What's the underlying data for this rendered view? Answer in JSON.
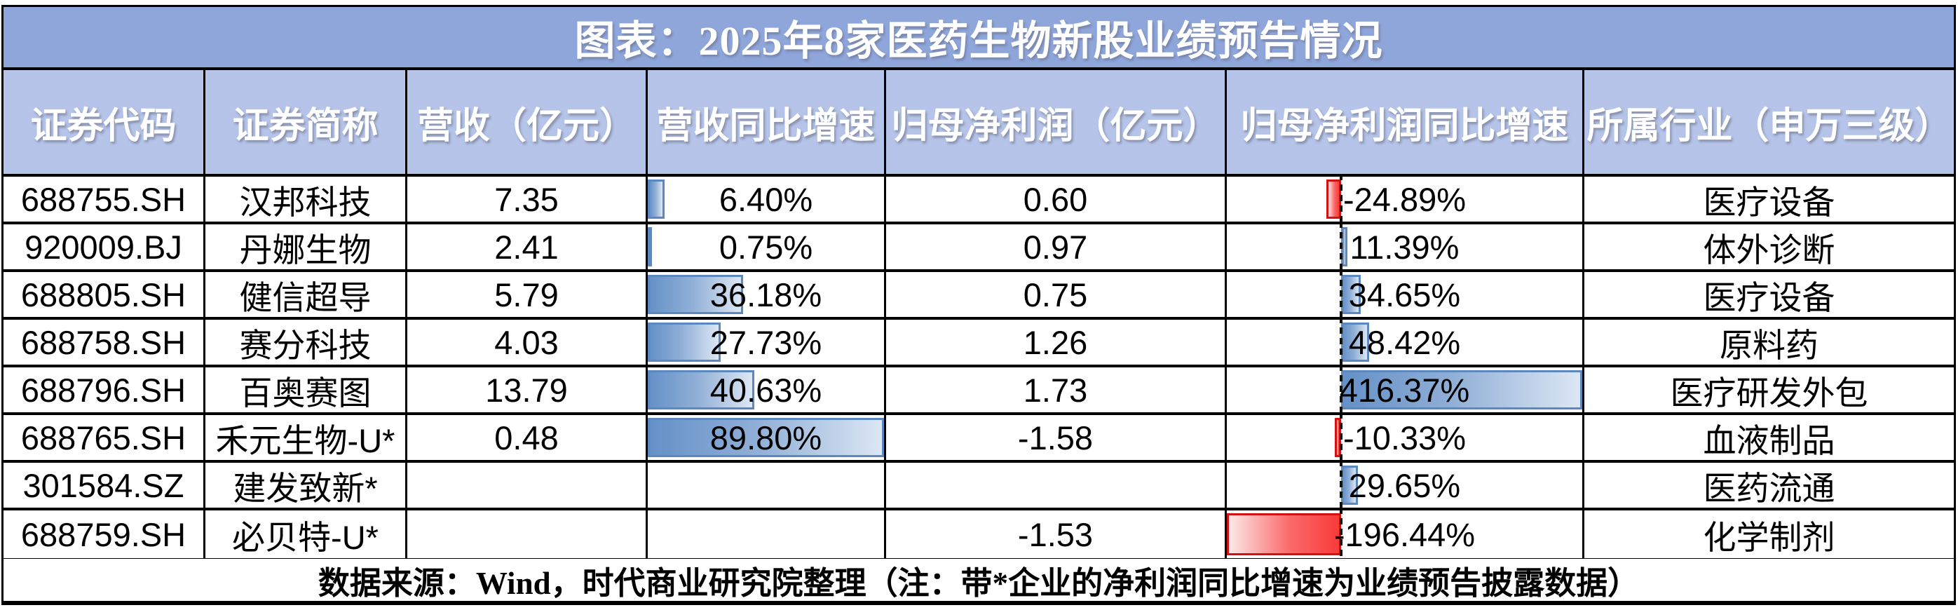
{
  "title": "图表：2025年8家医药生物新股业绩预告情况",
  "source_note": "数据来源：Wind，时代商业研究院整理（注：带*企业的净利润同比增速为业绩预告披露数据）",
  "colors": {
    "title_bg": "#8FA6DB",
    "header_bg": "#B5C4E8",
    "header_text": "#FFFFFF",
    "positive_bar_fill": "#6591C8",
    "positive_bar_fill_light": "#DCE7F4",
    "positive_bar_border": "#5B88BE",
    "negative_bar_fill": "#F93B3B",
    "negative_bar_fill_light": "#FCE9E9",
    "negative_bar_border": "#D41111",
    "grid_line": "#000000"
  },
  "chart_data": {
    "type": "table",
    "title": "图表：2025年8家医药生物新股业绩预告情况",
    "columns": [
      "证券代码",
      "证券简称",
      "营收（亿元）",
      "营收同比增速",
      "归母净利润（亿元）",
      "归母净利润同比增速",
      "所属行业（申万三级）"
    ],
    "rows": [
      {
        "code": "688755.SH",
        "name": "汉邦科技",
        "revenue": "7.35",
        "rev_growth": "6.40%",
        "rev_growth_value": 6.4,
        "profit": "0.60",
        "profit_growth": "-24.89%",
        "profit_growth_value": -24.89,
        "industry": "医疗设备"
      },
      {
        "code": "920009.BJ",
        "name": "丹娜生物",
        "revenue": "2.41",
        "rev_growth": "0.75%",
        "rev_growth_value": 0.75,
        "profit": "0.97",
        "profit_growth": "11.39%",
        "profit_growth_value": 11.39,
        "industry": "体外诊断"
      },
      {
        "code": "688805.SH",
        "name": "健信超导",
        "revenue": "5.79",
        "rev_growth": "36.18%",
        "rev_growth_value": 36.18,
        "profit": "0.75",
        "profit_growth": "34.65%",
        "profit_growth_value": 34.65,
        "industry": "医疗设备"
      },
      {
        "code": "688758.SH",
        "name": "赛分科技",
        "revenue": "4.03",
        "rev_growth": "27.73%",
        "rev_growth_value": 27.73,
        "profit": "1.26",
        "profit_growth": "48.42%",
        "profit_growth_value": 48.42,
        "industry": "原料药"
      },
      {
        "code": "688796.SH",
        "name": "百奥赛图",
        "revenue": "13.79",
        "rev_growth": "40.63%",
        "rev_growth_value": 40.63,
        "profit": "1.73",
        "profit_growth": "416.37%",
        "profit_growth_value": 416.37,
        "industry": "医疗研发外包"
      },
      {
        "code": "688765.SH",
        "name": "禾元生物-U*",
        "revenue": "0.48",
        "rev_growth": "89.80%",
        "rev_growth_value": 89.8,
        "profit": "-1.58",
        "profit_growth": "-10.33%",
        "profit_growth_value": -10.33,
        "industry": "血液制品"
      },
      {
        "code": "301584.SZ",
        "name": "建发致新*",
        "revenue": "",
        "rev_growth": "",
        "rev_growth_value": null,
        "profit": "",
        "profit_growth": "29.65%",
        "profit_growth_value": 29.65,
        "industry": "医药流通"
      },
      {
        "code": "688759.SH",
        "name": "必贝特-U*",
        "revenue": "",
        "rev_growth": "",
        "rev_growth_value": null,
        "profit": "-1.53",
        "profit_growth": "-196.44%",
        "profit_growth_value": -196.44,
        "industry": "化学制剂"
      }
    ],
    "databars": {
      "rev_growth_axis": "left-edge",
      "rev_growth_scale_max": 89.8,
      "profit_growth_scale_min": -196.44,
      "profit_growth_scale_max": 416.37
    },
    "source_note": "数据来源：Wind，时代商业研究院整理（注：带*企业的净利润同比增速为业绩预告披露数据）"
  }
}
